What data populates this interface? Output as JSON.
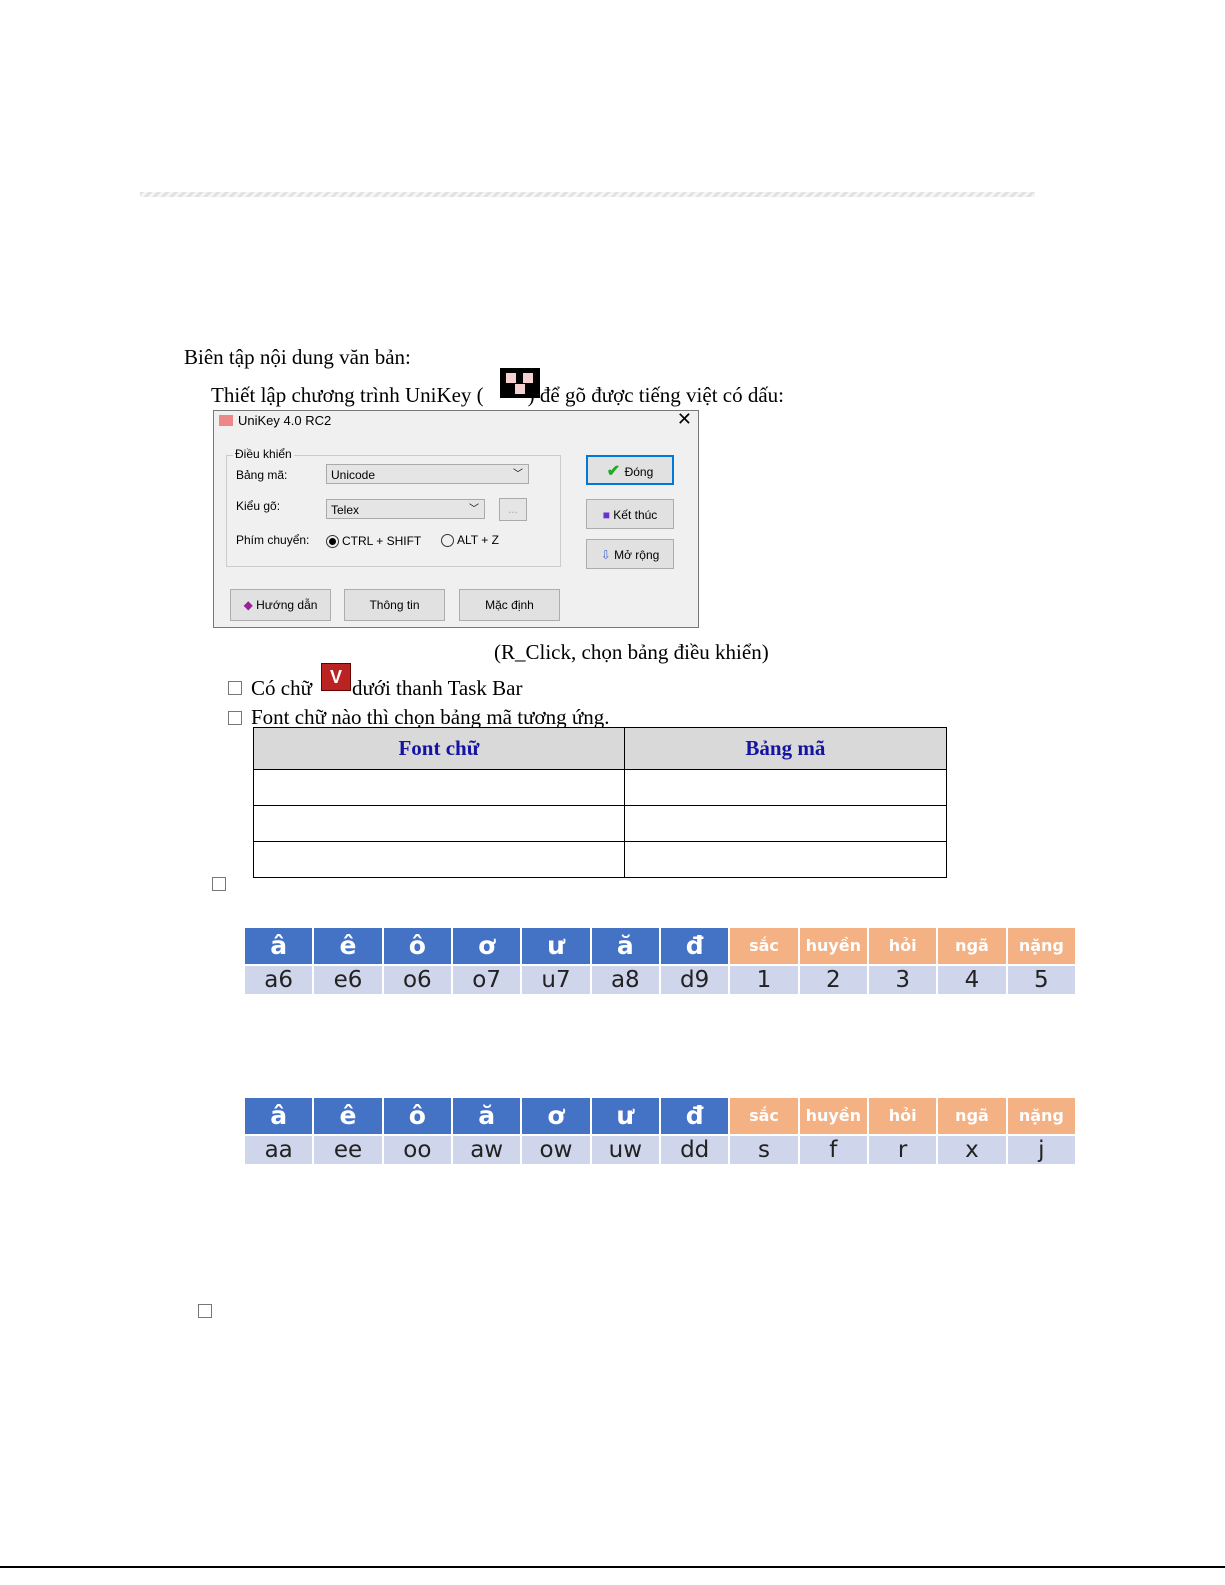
{
  "heading": "Biên tập nội dung văn bản:",
  "setup_line": {
    "before": "Thiết lập chương trình UniKey (",
    "after": ") để gõ được tiếng việt có dấu:"
  },
  "dialog": {
    "title": "UniKey 4.0 RC2",
    "close": "✕",
    "group": "Điều khiển",
    "bang_ma_label": "Bảng mã:",
    "bang_ma_value": "Unicode",
    "kieu_go_label": "Kiểu gõ:",
    "kieu_go_value": "Telex",
    "more": "...",
    "phim_chuyen_label": "Phím chuyển:",
    "opt1": "CTRL + SHIFT",
    "opt2": "ALT + Z",
    "dong": "Đóng",
    "ket_thuc": "Kết thúc",
    "mo_rong": "Mở rộng",
    "huong_dan": "Hướng dẫn",
    "thong_tin": "Thông tin",
    "mac_dinh": "Mặc định"
  },
  "caption": "(R_Click, chọn bảng điều khiển)",
  "bullets": {
    "b1_before": "Có chữ",
    "b1_after": "dưới thanh Task Bar",
    "b2": "Font chữ nào thì chọn bảng mã tương ứng.",
    "icon_v": "V"
  },
  "font_table": {
    "headers": [
      "Font chữ",
      "Bảng mã"
    ]
  },
  "vni": {
    "headers": [
      "â",
      "ê",
      "ô",
      "ơ",
      "ư",
      "ă",
      "đ",
      "sắc",
      "huyền",
      "hỏi",
      "ngã",
      "nặng"
    ],
    "values": [
      "a6",
      "e6",
      "o6",
      "o7",
      "u7",
      "a8",
      "d9",
      "1",
      "2",
      "3",
      "4",
      "5"
    ]
  },
  "telex": {
    "headers": [
      "â",
      "ê",
      "ô",
      "ă",
      "ơ",
      "ư",
      "đ",
      "sắc",
      "huyền",
      "hỏi",
      "ngã",
      "nặng"
    ],
    "values": [
      "aa",
      "ee",
      "oo",
      "aw",
      "ow",
      "uw",
      "dd",
      "s",
      "f",
      "r",
      "x",
      "j"
    ]
  },
  "colors": {
    "letter_header": "#4472c4",
    "tone_header": "#f4b183",
    "values_row": "#cfd5ea"
  }
}
